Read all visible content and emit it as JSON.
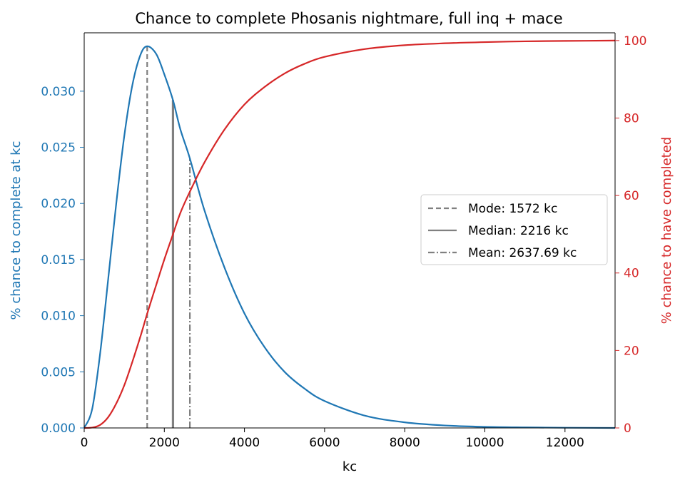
{
  "chart_data": {
    "type": "line",
    "title": "Chance to complete Phosanis nightmare, full inq + mace",
    "xlabel": "kc",
    "ylabel_left": "% chance to complete at kc",
    "ylabel_right": "% chance to have completed",
    "xlim": [
      0,
      13250
    ],
    "ylim_left": [
      0,
      0.0352
    ],
    "ylim_right": [
      0,
      102
    ],
    "x_ticks": [
      0,
      2000,
      4000,
      6000,
      8000,
      10000,
      12000
    ],
    "y_left_ticks": [
      0.0,
      0.005,
      0.01,
      0.015,
      0.02,
      0.025,
      0.03
    ],
    "y_right_ticks": [
      0,
      20,
      40,
      60,
      80,
      100
    ],
    "grid": false,
    "colors": {
      "left_axis": "#1f77b4",
      "right_axis": "#d62728",
      "markers": "#808080"
    },
    "series": [
      {
        "axis": "left",
        "x": [
          0,
          200,
          400,
          600,
          800,
          1000,
          1200,
          1400,
          1572,
          1800,
          2000,
          2216,
          2400,
          2638,
          3000,
          3500,
          4000,
          4500,
          5000,
          5500,
          6000,
          7000,
          8000,
          9000,
          10000,
          11000,
          12000,
          13250
        ],
        "values": [
          0,
          0.0017,
          0.0067,
          0.0133,
          0.02,
          0.026,
          0.0305,
          0.0332,
          0.034,
          0.0333,
          0.0315,
          0.0292,
          0.0266,
          0.024,
          0.0194,
          0.0143,
          0.0102,
          0.0072,
          0.005,
          0.0035,
          0.0024,
          0.0011,
          0.0005,
          0.00022,
          0.0001,
          5e-05,
          2e-05,
          0
        ]
      },
      {
        "axis": "right",
        "x": [
          0,
          200,
          400,
          600,
          800,
          1000,
          1200,
          1400,
          1572,
          1800,
          2000,
          2216,
          2400,
          2638,
          3000,
          3500,
          4000,
          4500,
          5000,
          5500,
          6000,
          7000,
          8000,
          9000,
          10000,
          11000,
          12000,
          13250
        ],
        "values": [
          0,
          0.1,
          0.8,
          2.8,
          6.3,
          11.0,
          17.0,
          23.5,
          29.5,
          37.0,
          43.5,
          50.0,
          55.5,
          61.0,
          68.5,
          77.0,
          83.5,
          88.0,
          91.5,
          94.0,
          95.8,
          97.8,
          98.8,
          99.3,
          99.6,
          99.8,
          99.9,
          100.0
        ]
      }
    ],
    "markers": [
      {
        "label": "Mode: 1572 kc",
        "x": 1572,
        "y_top": 0.034,
        "style": "dashed"
      },
      {
        "label": "Median: 2216 kc",
        "x": 2216,
        "y_top": 0.0292,
        "style": "solid"
      },
      {
        "label": "Mean: 2637.69 kc",
        "x": 2637.69,
        "y_top": 0.024,
        "style": "dashdot"
      }
    ],
    "legend_position": "center-right"
  }
}
